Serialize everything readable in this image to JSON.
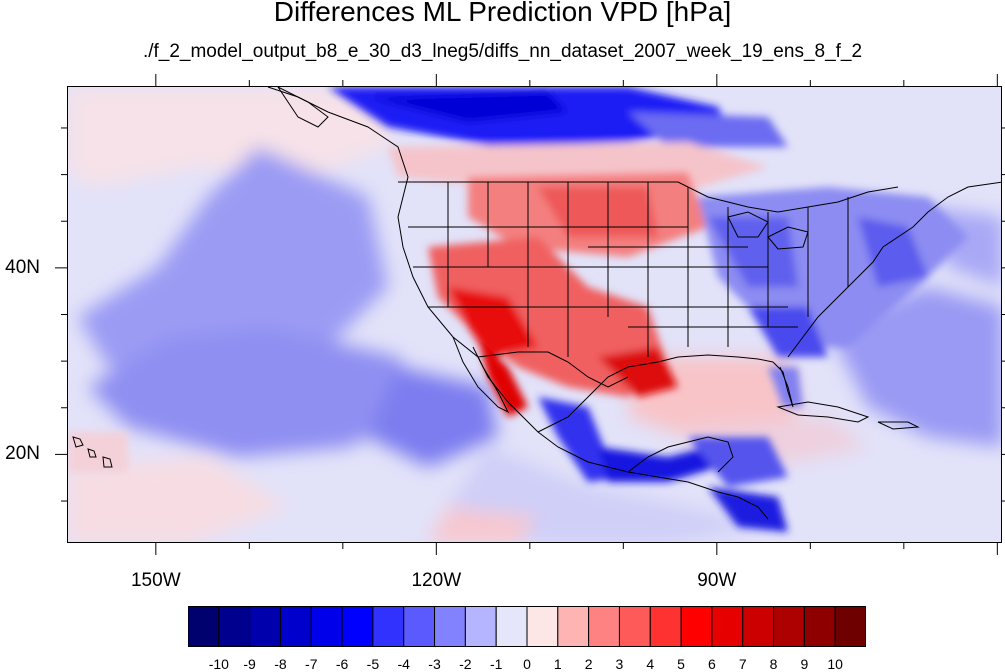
{
  "title": "Differences ML Prediction VPD [hPa]",
  "subtitle": "./f_2_model_output_b8_e_30_d3_lneg5/diffs_nn_dataset_2007_week_19_ens_8_f_2",
  "map": {
    "projection": "cylindrical equidistant",
    "lon_range": [
      -159.5,
      -59.5
    ],
    "lat_range": [
      10.5,
      59.5
    ],
    "lon_ticks": [
      {
        "value": -150,
        "label": "150W"
      },
      {
        "value": -120,
        "label": "120W"
      },
      {
        "value": -90,
        "label": "90W"
      }
    ],
    "lat_ticks": [
      {
        "value": 40,
        "label": "40N"
      },
      {
        "value": 20,
        "label": "20N"
      }
    ],
    "boundaries": "coastlines, national and US state borders",
    "features": [
      {
        "region": "northern Canada",
        "value": -6
      },
      {
        "region": "southwestern US desert",
        "value": 6
      },
      {
        "region": "Gulf of California coast",
        "value": 7
      },
      {
        "region": "Texas",
        "value": 6
      },
      {
        "region": "northern Great Plains",
        "value": 4
      },
      {
        "region": "southeastern US",
        "value": -5
      },
      {
        "region": "northeastern US",
        "value": -4
      },
      {
        "region": "Mexican highlands",
        "value": -7
      },
      {
        "region": "central Pacific ocean",
        "value": -3
      },
      {
        "region": "northwest Pacific",
        "value": -1
      },
      {
        "region": "Gulf of Mexico",
        "value": 2
      },
      {
        "region": "western Atlantic",
        "value": -3
      }
    ]
  },
  "colorbar": {
    "labels": [
      "-10",
      "-9",
      "-8",
      "-7",
      "-6",
      "-5",
      "-4",
      "-3",
      "-2",
      "-1",
      "0",
      "1",
      "2",
      "3",
      "4",
      "5",
      "6",
      "7",
      "8",
      "9",
      "10"
    ],
    "colors": [
      "#00006e",
      "#00008e",
      "#0000ad",
      "#0000cd",
      "#0000eb",
      "#0000ff",
      "#3232ff",
      "#5a5aff",
      "#8282ff",
      "#b4b4ff",
      "#e6e6fa",
      "#fde6e6",
      "#ffb4b4",
      "#ff8282",
      "#ff5a5a",
      "#ff3232",
      "#ff0000",
      "#e60000",
      "#cd0000",
      "#ad0000",
      "#8e0000",
      "#6e0000"
    ]
  }
}
